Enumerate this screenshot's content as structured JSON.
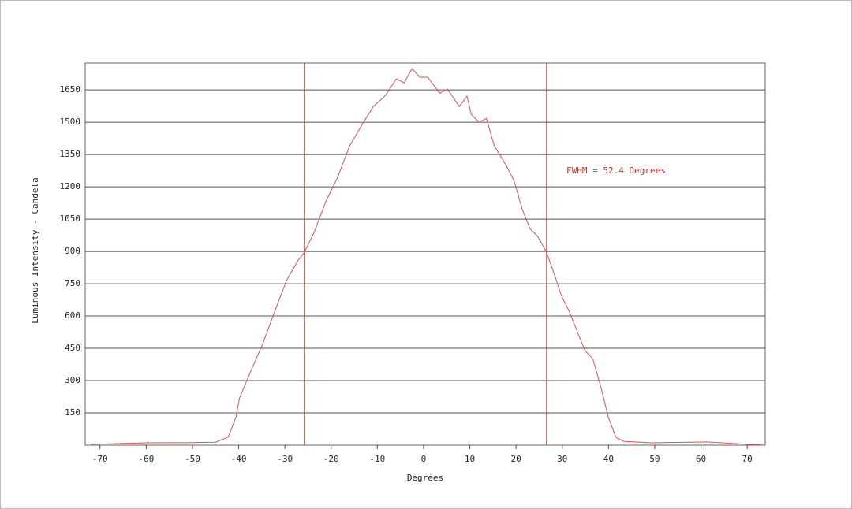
{
  "chart_data": {
    "type": "line",
    "x_label": "Degrees",
    "y_label": "Luminous Intensity - Candela",
    "annotation": "FWHM = 52.4 Degrees",
    "vlines": [
      -25.8,
      26.6
    ],
    "vline_color": "#c0392b",
    "xlim": [
      -73.2,
      73.9
    ],
    "ylim": [
      0,
      1775
    ],
    "xticks": [
      -70,
      -60,
      -50,
      -40,
      -30,
      -20,
      -10,
      0,
      10,
      20,
      30,
      40,
      50,
      60,
      70
    ],
    "yticks": [
      150,
      300,
      450,
      600,
      750,
      900,
      1050,
      1200,
      1350,
      1500,
      1650
    ],
    "grid": true,
    "series": [
      {
        "color": "#e05050",
        "x": [
          -72,
          -60,
          -50,
          -45,
          -42.3,
          -40.6,
          -39.8,
          -37.3,
          -34.7,
          -32.2,
          -29.6,
          -27.1,
          -25.8,
          -23.7,
          -21.1,
          -18.6,
          -16.0,
          -13.5,
          -10.9,
          -8.4,
          -5.9,
          -4.2,
          -2.5,
          -0.8,
          0.9,
          3.5,
          5.2,
          7.7,
          9.4,
          10.3,
          12.0,
          13.6,
          15.3,
          17.9,
          19.6,
          21.3,
          23.0,
          24.7,
          26.6,
          28.1,
          29.8,
          31.5,
          33.2,
          34.9,
          36.6,
          38.3,
          40.0,
          41.6,
          43.3,
          49.3,
          61.2,
          70,
          73
        ],
        "values": [
          4,
          11,
          12,
          14,
          37,
          128,
          220,
          348,
          476,
          622,
          768,
          860,
          896,
          988,
          1134,
          1244,
          1390,
          1482,
          1573,
          1621,
          1701,
          1683,
          1749,
          1709,
          1709,
          1635,
          1654,
          1573,
          1621,
          1537,
          1500,
          1518,
          1390,
          1299,
          1226,
          1098,
          1006,
          970,
          896,
          805,
          695,
          622,
          530,
          439,
          402,
          274,
          128,
          37,
          18,
          11,
          15,
          4,
          2
        ]
      }
    ]
  }
}
